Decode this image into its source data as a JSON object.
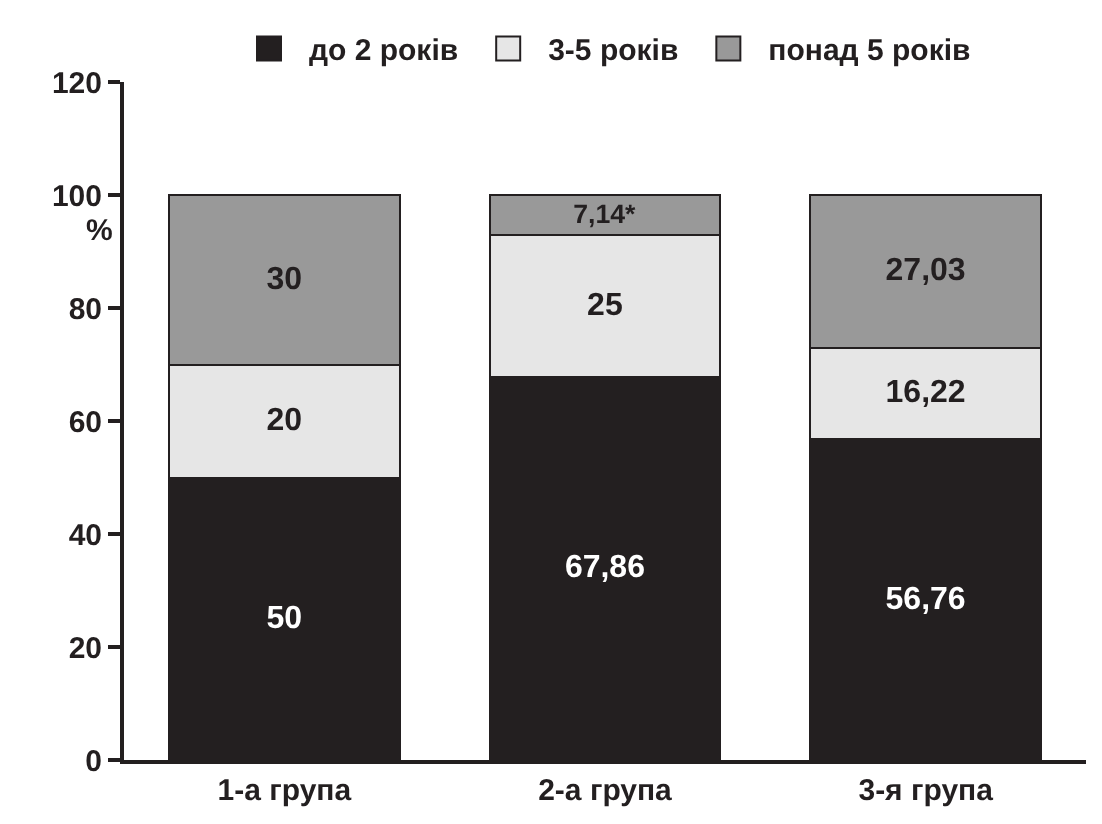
{
  "chart_data": {
    "type": "bar",
    "stacked": true,
    "categories": [
      "1-а група",
      "2-а група",
      "3-я група"
    ],
    "series": [
      {
        "name": "до 2 років",
        "color": "#231f20",
        "values": [
          50,
          67.86,
          56.76
        ],
        "value_labels": [
          "50",
          "67,86",
          "56,76"
        ]
      },
      {
        "name": "3-5 років",
        "color": "#e6e6e6",
        "values": [
          20,
          25,
          16.22
        ],
        "value_labels": [
          "20",
          "25",
          "16,22"
        ]
      },
      {
        "name": "понад 5 років",
        "color": "#999999",
        "values": [
          30,
          7.14,
          27.03
        ],
        "value_labels": [
          "30",
          "7,14*",
          "27,03"
        ]
      }
    ],
    "ylabel": "%",
    "ylim": [
      0,
      120
    ],
    "yticks": [
      0,
      20,
      40,
      60,
      80,
      100,
      120
    ],
    "legend": "top"
  }
}
